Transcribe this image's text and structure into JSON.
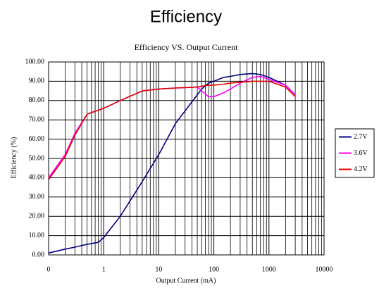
{
  "chart_data": {
    "type": "line",
    "title": "Efficiency",
    "subtitle": "Efficiency VS. Output Current",
    "x_label": "Output Current (mA)",
    "y_label": "Efficiency (%)",
    "x": [
      0.1,
      0.2,
      0.3,
      0.5,
      0.8,
      1,
      2,
      5,
      10,
      20,
      50,
      60,
      80,
      100,
      150,
      200,
      300,
      500,
      700,
      1000,
      2000,
      3000
    ],
    "series": [
      {
        "name": "2.7V",
        "color": "#000080",
        "values": [
          1,
          3,
          4,
          5.5,
          6.5,
          9,
          20,
          38,
          52,
          68,
          83,
          86,
          89,
          90,
          92,
          92.5,
          93.5,
          94,
          93.5,
          92,
          88,
          83
        ]
      },
      {
        "name": "3.6V",
        "color": "#ff00ff",
        "values": [
          40,
          52,
          63,
          73,
          75,
          76,
          80,
          85,
          86,
          86.5,
          87,
          85,
          82,
          82,
          84,
          86,
          89,
          92,
          92.5,
          91,
          88,
          83
        ]
      },
      {
        "name": "4.2V",
        "color": "#e00000",
        "values": [
          39,
          51,
          62,
          73,
          75,
          76,
          80,
          85,
          86,
          86.5,
          87,
          87.5,
          88,
          88,
          88.5,
          89,
          89.5,
          90,
          90,
          90,
          87,
          82
        ]
      }
    ],
    "xscale": "log",
    "xlim": [
      0.1,
      10000
    ],
    "xticks": [
      {
        "value": 0.1,
        "label": "0"
      },
      1,
      10,
      100,
      1000,
      10000
    ],
    "ylim": [
      0,
      100
    ],
    "yticks": [
      {
        "value": 0,
        "label": "0.00"
      },
      {
        "value": 10,
        "label": "10.00"
      },
      {
        "value": 20,
        "label": "20.00"
      },
      {
        "value": 30,
        "label": "30.00"
      },
      {
        "value": 40,
        "label": "40.00"
      },
      {
        "value": 50,
        "label": "50.00"
      },
      {
        "value": 60,
        "label": "60.00"
      },
      {
        "value": 70,
        "label": "70.00"
      },
      {
        "value": 80,
        "label": "80.00"
      },
      {
        "value": 90,
        "label": "90.00"
      },
      {
        "value": 100,
        "label": "100.00"
      }
    ],
    "grid": true,
    "minor_grid": true,
    "legend": "right"
  }
}
